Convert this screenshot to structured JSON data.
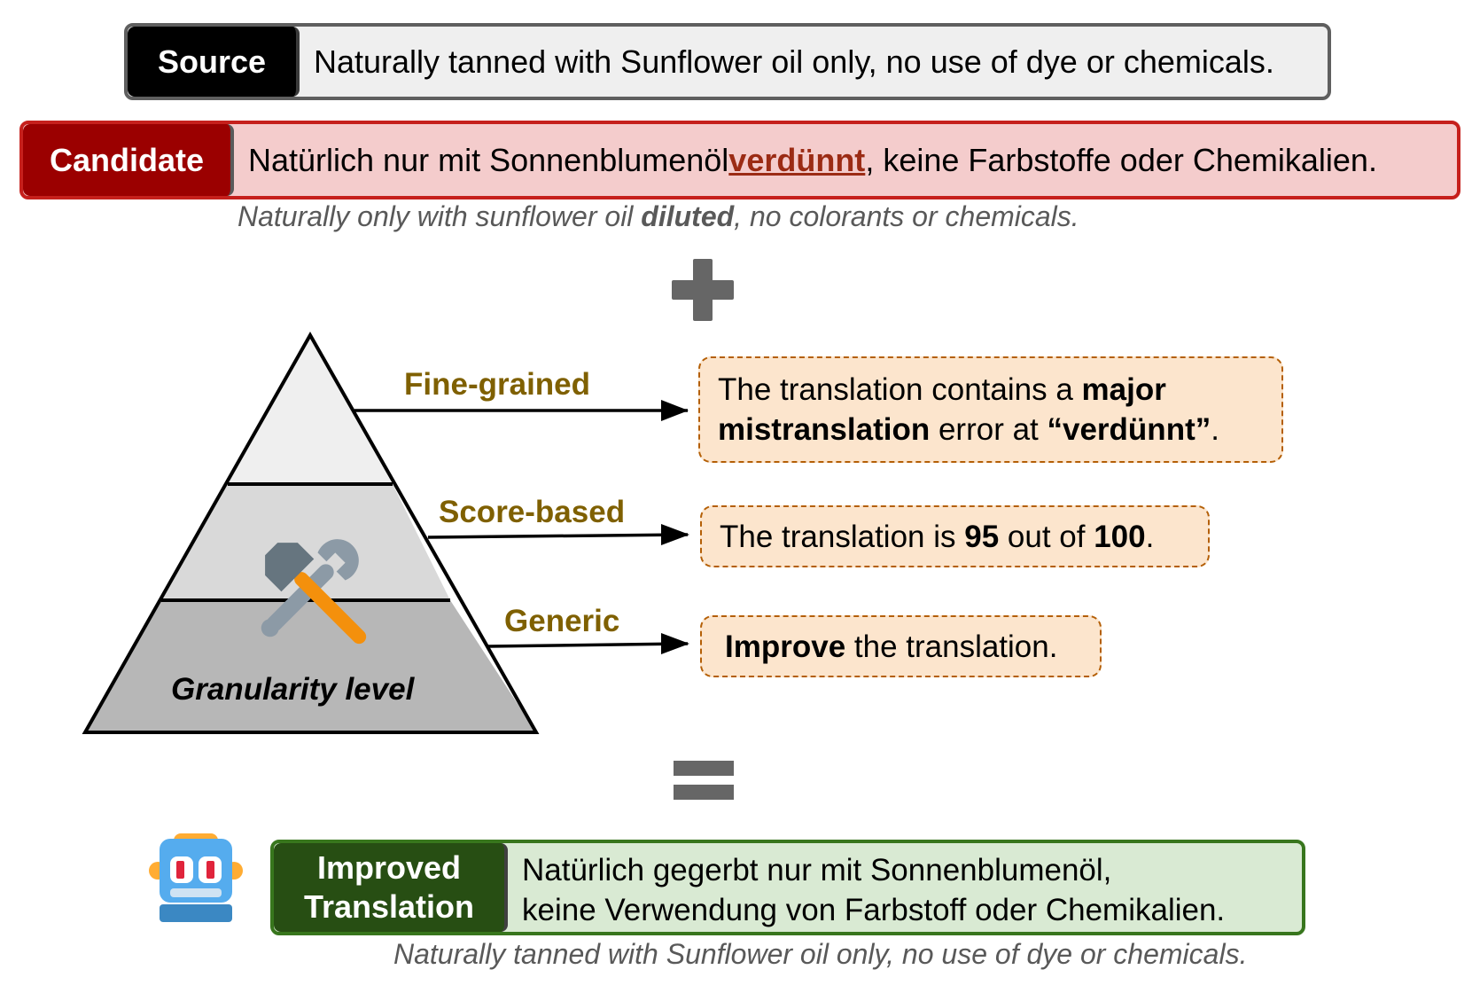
{
  "source": {
    "label": "Source",
    "text": "Naturally tanned with Sunflower oil only, no use of dye or chemicals."
  },
  "candidate": {
    "label": "Candidate",
    "text_before": "Natürlich nur mit Sonnenblumenöl ",
    "text_highlight": "verdünnt",
    "text_after": ", keine Farbstoffe oder Chemikalien.",
    "gloss_before": "Naturally only with sunflower oil ",
    "gloss_bold": "diluted",
    "gloss_after": ", no colorants or chemicals."
  },
  "operators": {
    "plus": "plus-icon",
    "equals": "equals-icon"
  },
  "pyramid": {
    "caption": "Granularity level",
    "icon": "hammer-and-wrench-icon",
    "levels": [
      {
        "label": "Fine-grained"
      },
      {
        "label": "Score-based"
      },
      {
        "label": "Generic"
      }
    ]
  },
  "feedback": {
    "fine": {
      "p1": "The translation contains a ",
      "b1": "major",
      "b2": "mistranslation",
      "p2": " error at ",
      "b3": "“verdünnt”",
      "p3": "."
    },
    "score": {
      "p1": "The translation is ",
      "b1": "95",
      "p2": " out of ",
      "b2": "100",
      "p3": "."
    },
    "generic": {
      "b1": "Improve",
      "p1": " the translation."
    }
  },
  "improved": {
    "label_line1": "Improved",
    "label_line2": "Translation",
    "line1": "Natürlich gegerbt nur mit Sonnenblumenöl,",
    "line2": "keine Verwendung von Farbstoff oder Chemikalien.",
    "gloss": "Naturally tanned with Sunflower oil only, no use of dye or chemicals.",
    "icon": "robot-icon"
  },
  "colors": {
    "source_label_bg": "#000000",
    "candidate_label_bg": "#9b0000",
    "candidate_bg": "#f4cccc",
    "level_label": "#7f6000",
    "feedback_bg": "#fce5cd",
    "improved_label_bg": "#274e13",
    "improved_bg": "#d9ead3"
  }
}
